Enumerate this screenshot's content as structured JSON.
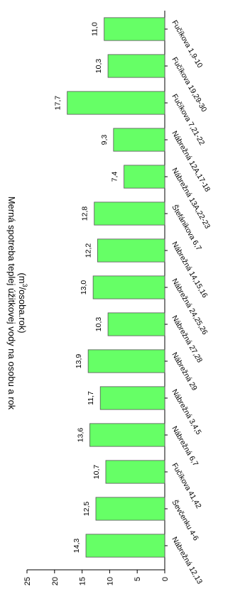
{
  "chart_data": {
    "type": "bar",
    "title": "Merná spotreba teplej úžitkovej vody na osobu a rok",
    "units_prefix": "(m",
    "units_sup": "3",
    "units_suffix": "/osoba.rok)",
    "categories": [
      "Fučíkova 1,9-10",
      "Fučíkova 19,29-30",
      "Fučíkova 7,21-22",
      "Nábrežná 12A,17-18",
      "Nábrežná 13A,22-23",
      "Štefánikova 6,7",
      "Nábrežná 14,15,16",
      "Nábrežná 24,25,26",
      "Nábrežná 27,28",
      "Nábrežná 29",
      "Nábrežná 3,4,5",
      "Nábrežná 6,7",
      "Fučíkova 41,42",
      "Ševčenku 4-6",
      "Nábrežná 12,13"
    ],
    "values": [
      11.0,
      10.3,
      17.7,
      9.3,
      7.4,
      12.8,
      12.2,
      13.0,
      10.3,
      13.9,
      11.7,
      13.6,
      10.7,
      12.5,
      14.3
    ],
    "value_labels": [
      "11,0",
      "10,3",
      "17,7",
      "9,3",
      "7,4",
      "12,8",
      "12,2",
      "13,0",
      "10,3",
      "13,9",
      "11,7",
      "13,6",
      "10,7",
      "12,5",
      "14,3"
    ],
    "ylim": [
      0,
      25
    ],
    "yticks": [
      "0",
      "5",
      "10",
      "15",
      "20",
      "25"
    ],
    "orientation": "rotated-90",
    "bar_color": "#66ff66",
    "bar_edge_color": "#555555"
  }
}
